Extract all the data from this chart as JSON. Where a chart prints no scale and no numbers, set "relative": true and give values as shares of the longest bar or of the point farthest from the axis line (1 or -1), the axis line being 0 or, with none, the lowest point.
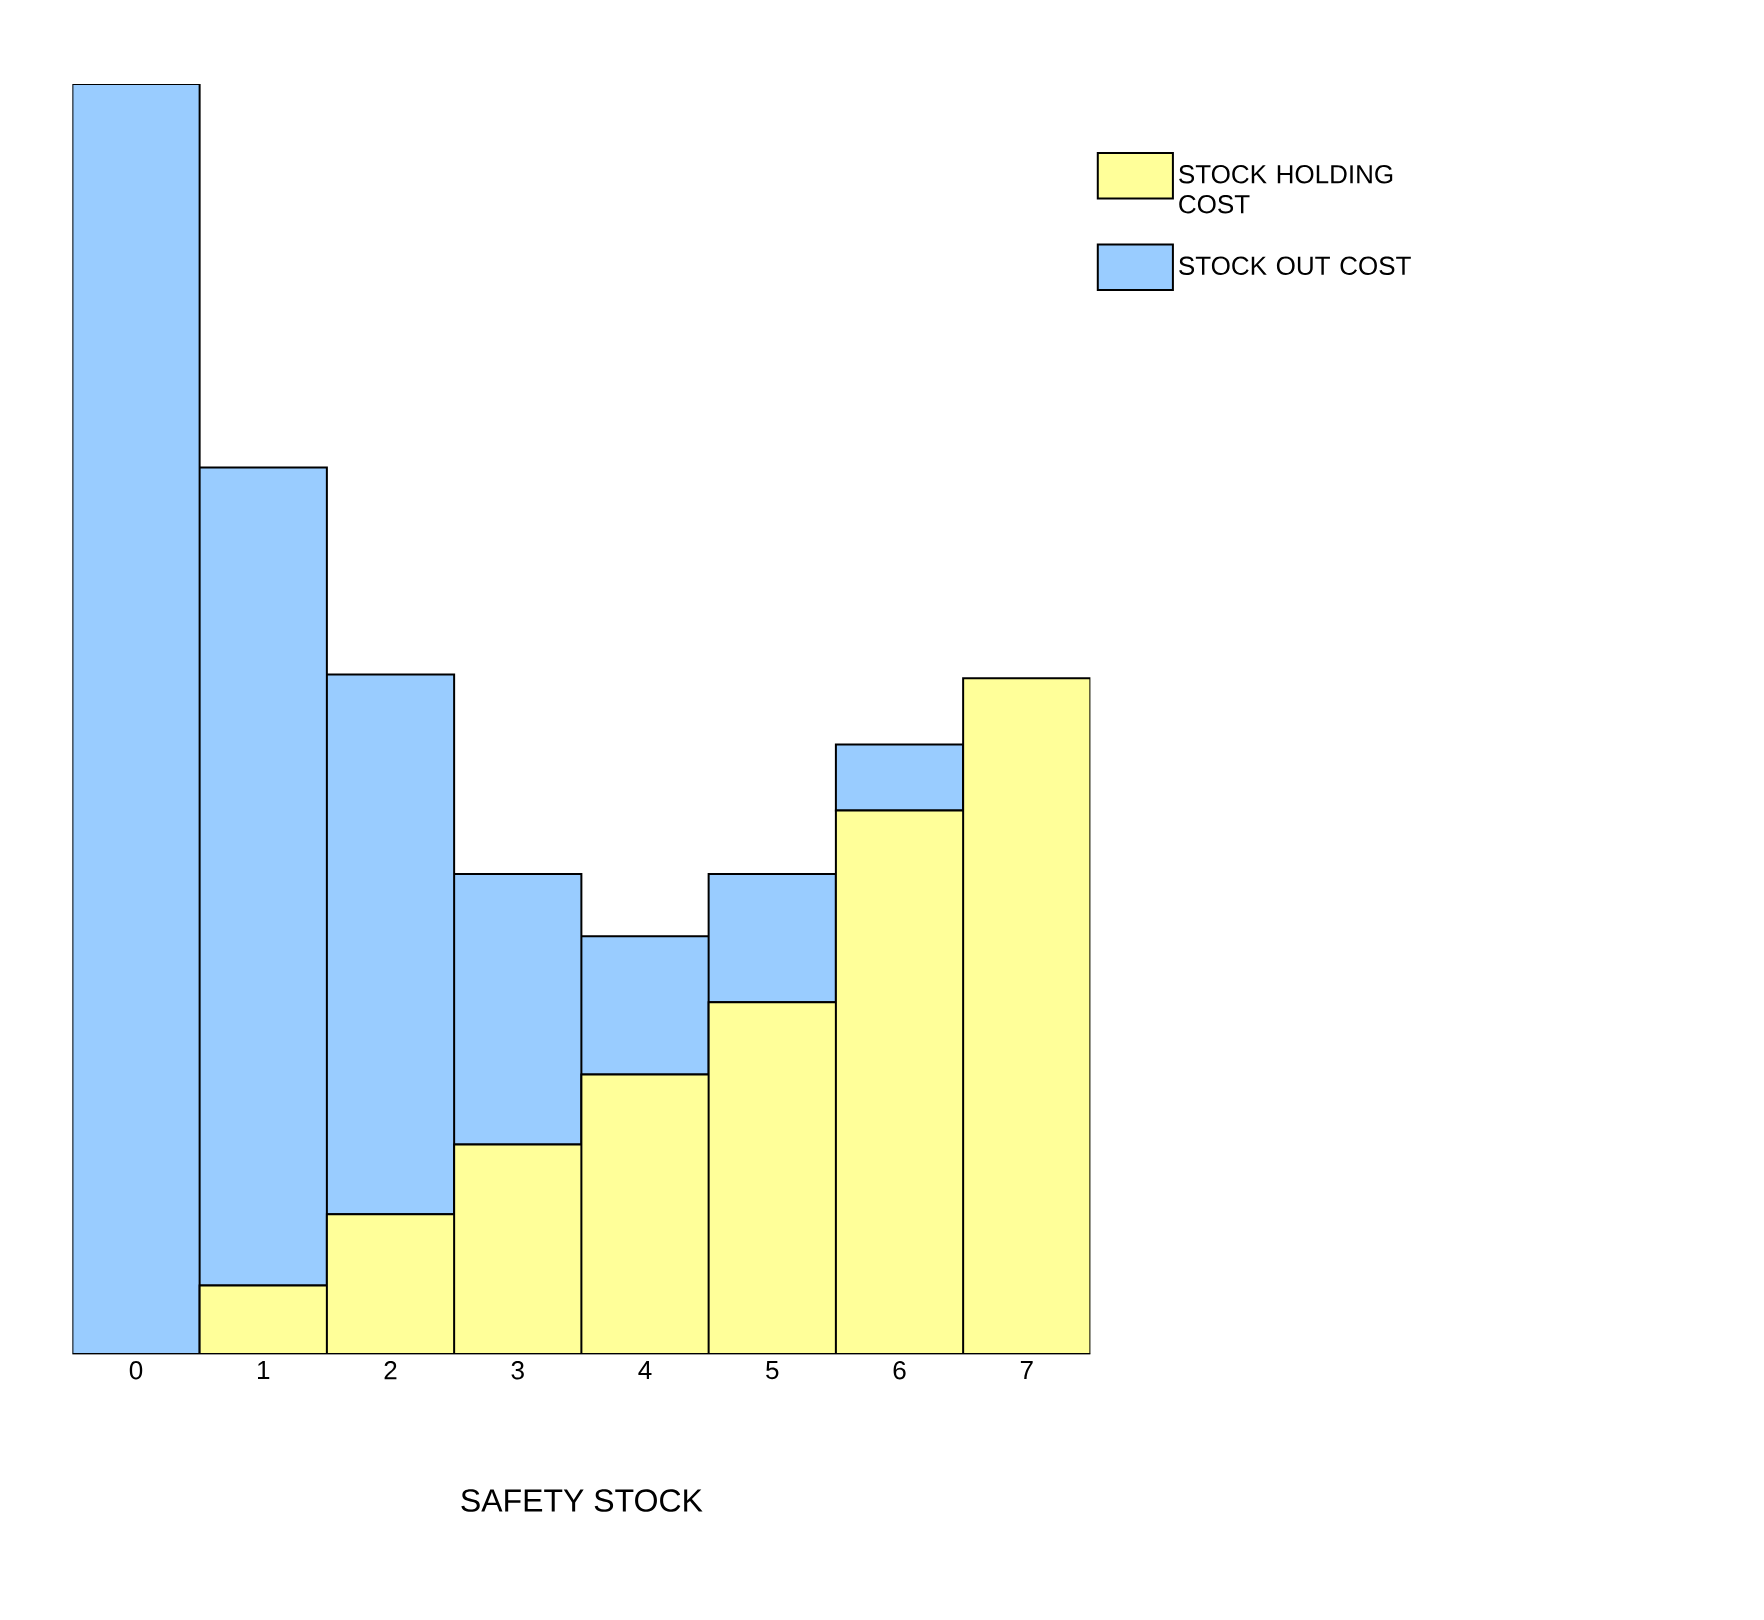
{
  "chart_data": {
    "type": "bar",
    "stacked": true,
    "relative": true,
    "xlabel": "SAFETY STOCK",
    "categories": [
      "0",
      "1",
      "2",
      "3",
      "4",
      "5",
      "6",
      "7"
    ],
    "series": [
      {
        "name": "STOCK HOLDING COST",
        "color": "#ffff99",
        "values": [
          0,
          0.054,
          0.11,
          0.165,
          0.22,
          0.277,
          0.428,
          0.532
        ]
      },
      {
        "name": "STOCK OUT COST",
        "color": "#99ccff",
        "values": [
          1,
          0.644,
          0.425,
          0.213,
          0.109,
          0.101,
          0.052,
          0
        ]
      }
    ],
    "legend": "top right"
  }
}
